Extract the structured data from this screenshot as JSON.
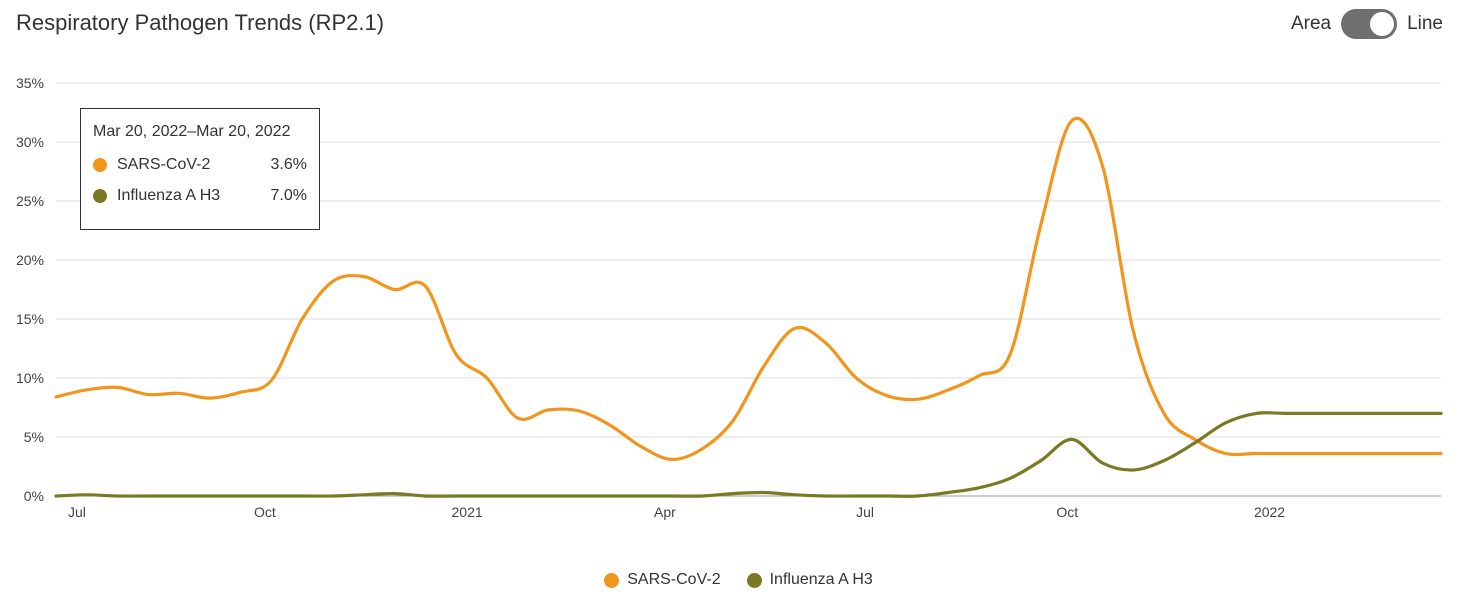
{
  "header": {
    "title": "Respiratory Pathogen Trends (RP2.1)",
    "toggle_left_label": "Area",
    "toggle_right_label": "Line"
  },
  "tooltip": {
    "date": "Mar 20, 2022–Mar 20, 2022",
    "rows": [
      {
        "name": "SARS-CoV-2",
        "value": "3.6%",
        "color": "#f2951c"
      },
      {
        "name": "Influenza A H3",
        "value": "7.0%",
        "color": "#7a7a24"
      }
    ]
  },
  "legend": [
    {
      "label": "SARS-CoV-2",
      "color": "#f2951c"
    },
    {
      "label": "Influenza A H3",
      "color": "#7a7a24"
    }
  ],
  "chart_data": {
    "type": "line",
    "title": "Respiratory Pathogen Trends (RP2.1)",
    "xlabel": "",
    "ylabel": "",
    "ylim": [
      0,
      35
    ],
    "xlim": [
      "2020-06-28",
      "2022-03-20"
    ],
    "yticks": [
      "0%",
      "5%",
      "10%",
      "15%",
      "20%",
      "25%",
      "30%",
      "35%"
    ],
    "xticks": [
      {
        "label": "Jul",
        "date": "2020-07-01"
      },
      {
        "label": "Oct",
        "date": "2020-10-01"
      },
      {
        "label": "2021",
        "date": "2021-01-01"
      },
      {
        "label": "Apr",
        "date": "2021-04-01"
      },
      {
        "label": "Jul",
        "date": "2021-07-01"
      },
      {
        "label": "Oct",
        "date": "2021-10-01"
      },
      {
        "label": "2022",
        "date": "2022-01-01"
      }
    ],
    "grid": true,
    "legend_position": "bottom",
    "series": [
      {
        "name": "SARS-CoV-2",
        "color": "#f2951c",
        "x": [
          "2020-06-28",
          "2020-07-12",
          "2020-07-26",
          "2020-08-09",
          "2020-08-23",
          "2020-09-06",
          "2020-09-20",
          "2020-10-04",
          "2020-10-18",
          "2020-11-01",
          "2020-11-15",
          "2020-11-29",
          "2020-12-13",
          "2020-12-27",
          "2021-01-10",
          "2021-01-24",
          "2021-02-07",
          "2021-02-21",
          "2021-03-07",
          "2021-03-21",
          "2021-04-04",
          "2021-04-18",
          "2021-05-02",
          "2021-05-16",
          "2021-05-30",
          "2021-06-13",
          "2021-06-27",
          "2021-07-11",
          "2021-07-25",
          "2021-08-08",
          "2021-08-22",
          "2021-09-05",
          "2021-09-19",
          "2021-10-03",
          "2021-10-17",
          "2021-10-31",
          "2021-11-14",
          "2021-11-28",
          "2021-12-12",
          "2021-12-26",
          "2022-01-09",
          "2022-01-23",
          "2022-02-06",
          "2022-02-20",
          "2022-03-06",
          "2022-03-20"
        ],
        "y": [
          8.4,
          9.0,
          9.2,
          8.6,
          8.7,
          8.3,
          8.8,
          9.8,
          15.0,
          18.2,
          18.6,
          17.5,
          17.8,
          12.0,
          10.0,
          6.6,
          7.3,
          7.2,
          6.0,
          4.2,
          3.1,
          4.0,
          6.4,
          11.0,
          14.2,
          13.0,
          10.0,
          8.5,
          8.2,
          9.0,
          10.2,
          12.0,
          23.0,
          31.8,
          28.0,
          14.0,
          7.0,
          4.8,
          3.6,
          3.6,
          3.6,
          3.6,
          3.6,
          3.6,
          3.6,
          3.6
        ]
      },
      {
        "name": "Influenza A H3",
        "color": "#7a7a24",
        "x": [
          "2020-06-28",
          "2020-07-12",
          "2020-07-26",
          "2020-08-09",
          "2020-08-23",
          "2020-09-06",
          "2020-09-20",
          "2020-10-04",
          "2020-10-18",
          "2020-11-01",
          "2020-11-15",
          "2020-11-29",
          "2020-12-13",
          "2020-12-27",
          "2021-01-10",
          "2021-01-24",
          "2021-02-07",
          "2021-02-21",
          "2021-03-07",
          "2021-03-21",
          "2021-04-04",
          "2021-04-18",
          "2021-05-02",
          "2021-05-16",
          "2021-05-30",
          "2021-06-13",
          "2021-06-27",
          "2021-07-11",
          "2021-07-25",
          "2021-08-08",
          "2021-08-22",
          "2021-09-05",
          "2021-09-19",
          "2021-10-03",
          "2021-10-17",
          "2021-10-31",
          "2021-11-14",
          "2021-11-28",
          "2021-12-12",
          "2021-12-26",
          "2022-01-09",
          "2022-01-23",
          "2022-02-06",
          "2022-02-20",
          "2022-03-06",
          "2022-03-20"
        ],
        "y": [
          0.0,
          0.1,
          0.0,
          0.0,
          0.0,
          0.0,
          0.0,
          0.0,
          0.0,
          0.0,
          0.1,
          0.2,
          0.0,
          0.0,
          0.0,
          0.0,
          0.0,
          0.0,
          0.0,
          0.0,
          0.0,
          0.0,
          0.2,
          0.3,
          0.1,
          0.0,
          0.0,
          0.0,
          0.0,
          0.3,
          0.7,
          1.5,
          3.0,
          4.8,
          2.8,
          2.2,
          3.0,
          4.5,
          6.2,
          7.0,
          7.0,
          7.0,
          7.0,
          7.0,
          7.0,
          7.0
        ]
      }
    ]
  }
}
